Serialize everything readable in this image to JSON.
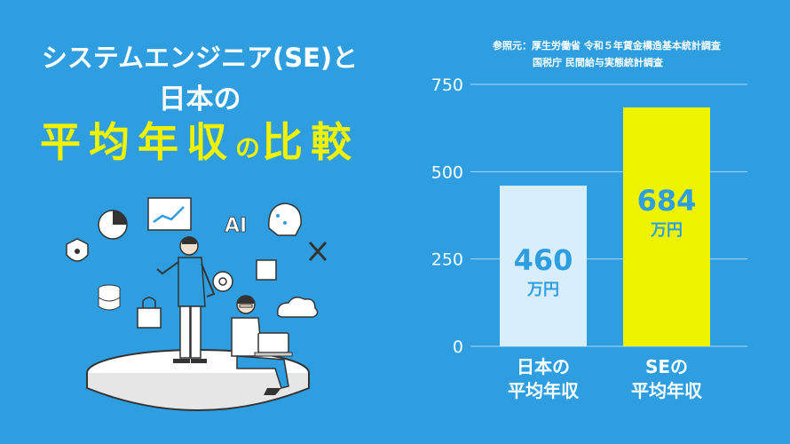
{
  "title": {
    "line1": "システムエンジニア(SE)と",
    "line2": "日本の",
    "line3_a": "平均年収",
    "line3_b": "の",
    "line3_c": "比較"
  },
  "source": {
    "line1": "参照元：厚生労働省 令和５年賃金構造基本統計調査",
    "line2": "国税庁 民間給与実態統計調査"
  },
  "colors": {
    "background": "#2f9ee0",
    "bar_japan": "#d8effb",
    "bar_se": "#eef300",
    "value_japan": "#2f9ee0",
    "value_se": "#2f9ee0",
    "label_se": "#f0f200"
  },
  "illustration": {
    "ai_text": "AI"
  },
  "chart_data": {
    "type": "bar",
    "categories": [
      "日本の平均年収",
      "SEの平均年収"
    ],
    "category_lines": [
      [
        "日本の",
        "平均年収"
      ],
      [
        "SEの",
        "平均年収"
      ]
    ],
    "values": [
      460,
      684
    ],
    "value_labels": [
      "460",
      "684"
    ],
    "unit": "万円",
    "yticks": [
      0,
      250,
      500,
      750
    ],
    "ylim": [
      0,
      750
    ],
    "grid": true
  }
}
